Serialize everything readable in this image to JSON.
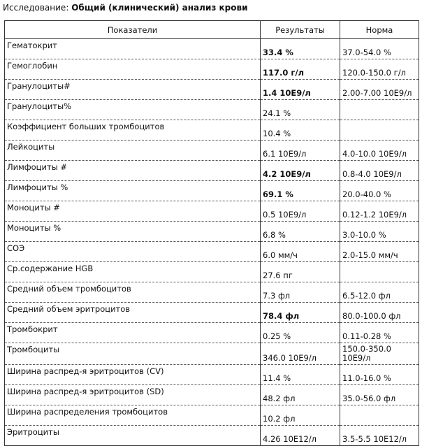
{
  "study": {
    "label": "Исследование:",
    "title": "Общий (клинический) анализ крови"
  },
  "table": {
    "headers": [
      "Показатели",
      "Результаты",
      "Норма"
    ],
    "rows": [
      {
        "name": "Гематокрит",
        "value": "33.4 %",
        "norm": "37.0-54.0 %",
        "flagged": true
      },
      {
        "name": "Гемоглобин",
        "value": "117.0 г/л",
        "norm": "120.0-150.0 г/л",
        "flagged": true
      },
      {
        "name": "Гранулоциты#",
        "value": "1.4 10E9/л",
        "norm": "2.00-7.00 10E9/л",
        "flagged": true
      },
      {
        "name": "Гранулоциты%",
        "value": "24.1 %",
        "norm": "",
        "flagged": false
      },
      {
        "name": "Коэффициент больших тромбоцитов",
        "value": "10.4 %",
        "norm": "",
        "flagged": false
      },
      {
        "name": "Лейкоциты",
        "value": "6.1 10E9/л",
        "norm": "4.0-10.0 10E9/л",
        "flagged": false
      },
      {
        "name": "Лимфоциты #",
        "value": "4.2 10E9/л",
        "norm": "0.8-4.0 10E9/л",
        "flagged": true
      },
      {
        "name": "Лимфоциты %",
        "value": "69.1 %",
        "norm": "20.0-40.0 %",
        "flagged": true
      },
      {
        "name": "Моноциты #",
        "value": "0.5 10E9/л",
        "norm": "0.12-1.2 10E9/л",
        "flagged": false
      },
      {
        "name": "Моноциты %",
        "value": "6.8 %",
        "norm": "3.0-10.0 %",
        "flagged": false
      },
      {
        "name": "СОЭ",
        "value": "6.0 мм/ч",
        "norm": "2.0-15.0 мм/ч",
        "flagged": false
      },
      {
        "name": "Ср.содержание HGB",
        "value": "27.6 пг",
        "norm": "",
        "flagged": false
      },
      {
        "name": "Средний объем тромбоцитов",
        "value": "7.3 фл",
        "norm": "6.5-12.0 фл",
        "flagged": false
      },
      {
        "name": "Средний объем эритроцитов",
        "value": "78.4 фл",
        "norm": "80.0-100.0 фл",
        "flagged": true
      },
      {
        "name": "Тромбокрит",
        "value": "0.25 %",
        "norm": "0.11-0.28 %",
        "flagged": false
      },
      {
        "name": "Тромбоциты",
        "value": "346.0 10E9/л",
        "norm": "150.0-350.0 10E9/л",
        "flagged": false
      },
      {
        "name": "Ширина распред-я эритроцитов (CV)",
        "value": "11.4 %",
        "norm": "11.0-16.0 %",
        "flagged": false
      },
      {
        "name": "Ширина распред-я эритроцитов (SD)",
        "value": "48.2 фл",
        "norm": "35.0-56.0 фл",
        "flagged": false
      },
      {
        "name": "Ширина распределения тромбоцитов",
        "value": "10.2 фл",
        "norm": "",
        "flagged": false
      },
      {
        "name": "Эритроциты",
        "value": "4.26 10E12/л",
        "norm": "3.5-5.5 10E12/л",
        "flagged": false
      }
    ]
  }
}
